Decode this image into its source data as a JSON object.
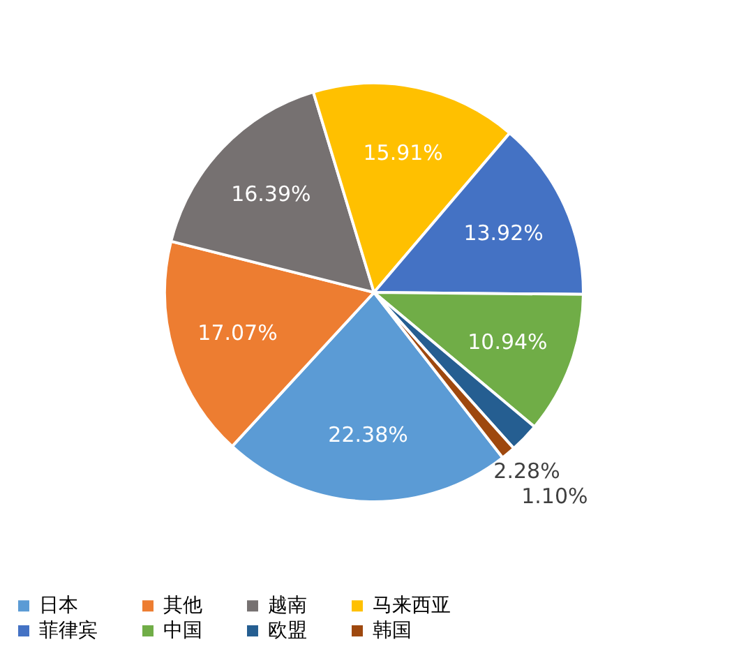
{
  "chart_data": {
    "type": "pie",
    "categories": [
      "日本",
      "其他",
      "越南",
      "马来西亚",
      "菲律宾",
      "中国",
      "欧盟",
      "韩国"
    ],
    "values": [
      22.38,
      17.07,
      16.39,
      15.91,
      13.92,
      10.94,
      2.28,
      1.1
    ],
    "colors": [
      "#5b9bd5",
      "#ed7d31",
      "#767171",
      "#ffc000",
      "#4472c4",
      "#70ad47",
      "#255e91",
      "#9e480e"
    ],
    "value_labels": [
      "22.38%",
      "17.07%",
      "16.39%",
      "15.91%",
      "13.92%",
      "10.94%",
      "2.28%",
      "1.10%"
    ],
    "legend": "bottom"
  }
}
